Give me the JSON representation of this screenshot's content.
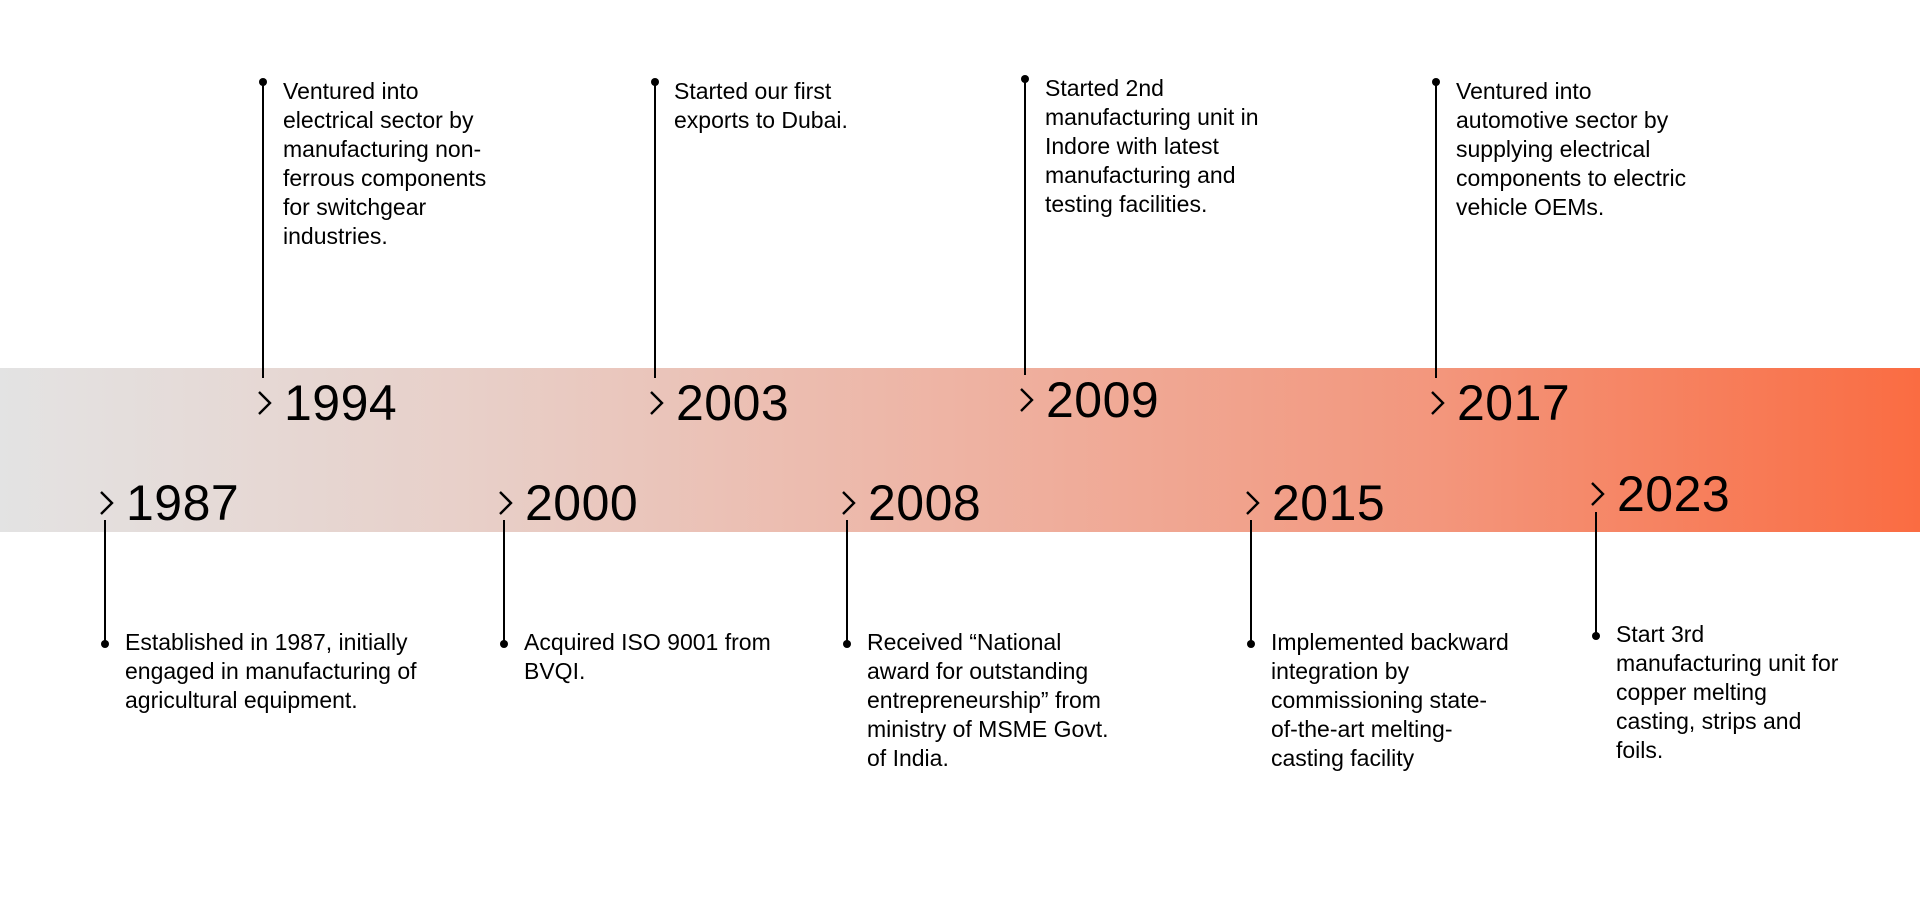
{
  "milestones": [
    {
      "year": "1987",
      "text": "Established in 1987, initially engaged in manufacturing of agricultural equipment."
    },
    {
      "year": "1994",
      "text": "Ventured into electrical sector by manufacturing non-ferrous components for switchgear industries."
    },
    {
      "year": "2000",
      "text": "Acquired ISO 9001 from BVQI."
    },
    {
      "year": "2003",
      "text": "Started our first exports to Dubai."
    },
    {
      "year": "2008",
      "text": "Received “National award for outstanding entrepreneurship” from ministry of MSME Govt. of India."
    },
    {
      "year": "2009",
      "text": "Started 2nd manufacturing unit in Indore with latest manufacturing and testing facilities."
    },
    {
      "year": "2015",
      "text": "Implemented backward integration by commissioning state-of-the-art melting-casting facility"
    },
    {
      "year": "2017",
      "text": "Ventured into automotive sector by supplying electrical components to electric vehicle OEMs."
    },
    {
      "year": "2023",
      "text": "Start 3rd manufacturing unit for copper melting casting, strips and foils."
    }
  ],
  "colors": {
    "gradient_start": "#e3e3e3",
    "gradient_end": "#fa6c42",
    "text": "#000000"
  },
  "icons": {
    "marker": "chevron-right-icon",
    "endpoint": "dot"
  }
}
